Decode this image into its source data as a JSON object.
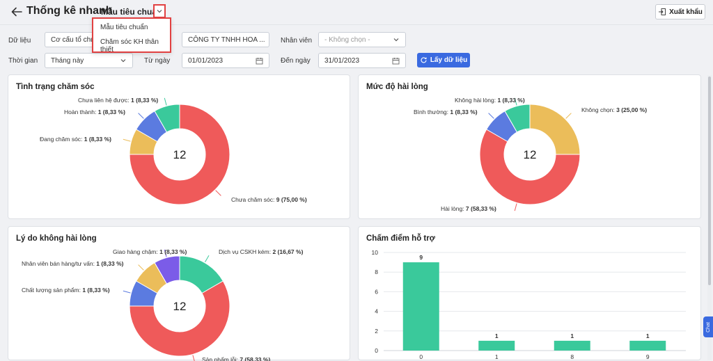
{
  "header": {
    "title": "Thống kê nhanh",
    "template_label": "Mẫu tiêu chuẩn",
    "export_label": "Xuất khẩu"
  },
  "dropdown": {
    "options": [
      "Mẫu tiêu chuẩn",
      "Chăm sóc KH thân thiết"
    ]
  },
  "filters": {
    "data_label": "Dữ liệu",
    "data_value": "Cơ cấu tổ chức",
    "company_value": "CÔNG TY TNHH HOA ...",
    "employee_label": "Nhân viên",
    "employee_placeholder": "- Không chọn -",
    "time_label": "Thời gian",
    "time_value": "Tháng này",
    "from_label": "Từ ngày",
    "from_value": "01/01/2023",
    "to_label": "Đến ngày",
    "to_value": "31/01/2023",
    "fetch_label": "Lấy dữ liệu"
  },
  "chat_label": "Chat",
  "colors": {
    "red": "#ef5a5a",
    "yellow": "#ebbd5a",
    "blue": "#5b7be0",
    "green": "#3ac99b",
    "purple": "#7b5ce8",
    "primary": "#3a6ae0",
    "highlight": "#e14141"
  },
  "chart_data": [
    {
      "type": "pie",
      "title": "Tình trạng chăm sóc",
      "center_label": "12",
      "slices": [
        {
          "label": "Chưa chăm sóc",
          "value": 9,
          "display": "9 (75,00 %)",
          "color": "#ef5a5a"
        },
        {
          "label": "Đang chăm sóc",
          "value": 1,
          "display": "1 (8,33 %)",
          "color": "#ebbd5a"
        },
        {
          "label": "Hoàn thành",
          "value": 1,
          "display": "1 (8,33 %)",
          "color": "#5b7be0"
        },
        {
          "label": "Chưa liên hệ được",
          "value": 1,
          "display": "1 (8,33 %)",
          "color": "#3ac99b"
        }
      ]
    },
    {
      "type": "pie",
      "title": "Mức độ hài lòng",
      "center_label": "12",
      "slices": [
        {
          "label": "Không chọn",
          "value": 3,
          "display": "3 (25,00 %)",
          "color": "#ebbd5a"
        },
        {
          "label": "Hài lòng",
          "value": 7,
          "display": "7 (58,33 %)",
          "color": "#ef5a5a"
        },
        {
          "label": "Bình thường",
          "value": 1,
          "display": "1 (8,33 %)",
          "color": "#5b7be0"
        },
        {
          "label": "Không hài lòng",
          "value": 1,
          "display": "1 (8,33 %)",
          "color": "#3ac99b"
        }
      ]
    },
    {
      "type": "pie",
      "title": "Lý do không hài lòng",
      "center_label": "12",
      "slices": [
        {
          "label": "Dịch vụ CSKH kém",
          "value": 2,
          "display": "2 (16,67 %)",
          "color": "#3ac99b"
        },
        {
          "label": "Sản phẩm lỗi",
          "value": 7,
          "display": "7 (58,33 %)",
          "color": "#ef5a5a"
        },
        {
          "label": "Chất lượng sản phẩm",
          "value": 1,
          "display": "1 (8,33 %)",
          "color": "#5b7be0"
        },
        {
          "label": "Nhân viên bán hàng/tư vấn",
          "value": 1,
          "display": "1 (8,33 %)",
          "color": "#ebbd5a"
        },
        {
          "label": "Giao hàng chậm",
          "value": 1,
          "display": "1 (8,33 %)",
          "color": "#7b5ce8"
        }
      ]
    },
    {
      "type": "bar",
      "title": "Chấm điểm hỗ trợ",
      "categories": [
        "0",
        "1",
        "8",
        "9"
      ],
      "values": [
        9,
        1,
        1,
        1
      ],
      "yticks": [
        "0",
        "2",
        "4",
        "6",
        "8",
        "10"
      ],
      "ylim": [
        0,
        10
      ],
      "grid": true,
      "color": "#3ac99b"
    }
  ]
}
